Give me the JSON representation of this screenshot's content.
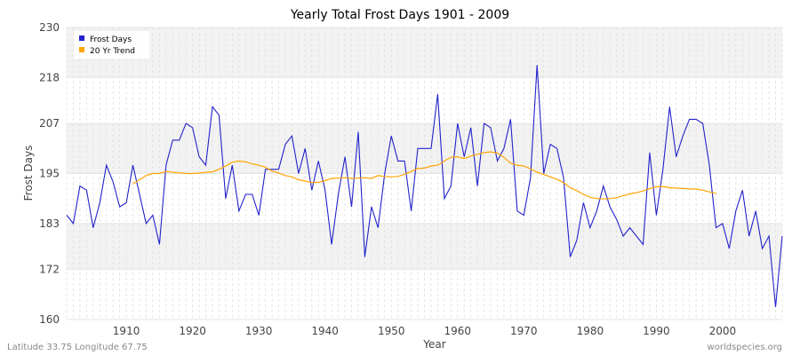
{
  "chart_data": {
    "type": "line",
    "title": "Yearly Total Frost Days 1901 - 2009",
    "xlabel": "Year",
    "ylabel": "Frost Days",
    "xlim": [
      1901,
      2009
    ],
    "ylim": [
      160,
      230
    ],
    "x_ticks": [
      1910,
      1920,
      1930,
      1940,
      1950,
      1960,
      1970,
      1980,
      1990,
      2000
    ],
    "y_ticks": [
      160,
      172,
      183,
      195,
      207,
      218,
      230
    ],
    "grid": true,
    "legend_position": "top-left",
    "colors": {
      "frost_days": "#2222cc",
      "trend": "#ffa500"
    },
    "series": [
      {
        "name": "Frost Days",
        "x": [
          1901,
          1902,
          1903,
          1904,
          1905,
          1906,
          1907,
          1908,
          1909,
          1910,
          1911,
          1912,
          1913,
          1914,
          1915,
          1916,
          1917,
          1918,
          1919,
          1920,
          1921,
          1922,
          1923,
          1924,
          1925,
          1926,
          1927,
          1928,
          1929,
          1930,
          1931,
          1932,
          1933,
          1934,
          1935,
          1936,
          1937,
          1938,
          1939,
          1940,
          1941,
          1942,
          1943,
          1944,
          1945,
          1946,
          1947,
          1948,
          1949,
          1950,
          1951,
          1952,
          1953,
          1954,
          1955,
          1956,
          1957,
          1958,
          1959,
          1960,
          1961,
          1962,
          1963,
          1964,
          1965,
          1966,
          1967,
          1968,
          1969,
          1970,
          1971,
          1972,
          1973,
          1974,
          1975,
          1976,
          1977,
          1978,
          1979,
          1980,
          1981,
          1982,
          1983,
          1984,
          1985,
          1986,
          1987,
          1988,
          1989,
          1990,
          1991,
          1992,
          1993,
          1994,
          1995,
          1996,
          1997,
          1998,
          1999,
          2000,
          2001,
          2002,
          2003,
          2004,
          2005,
          2006,
          2007,
          2008,
          2009
        ],
        "values": [
          185,
          183,
          192,
          191,
          182,
          188,
          197,
          193,
          187,
          188,
          197,
          190,
          183,
          185,
          178,
          197,
          203,
          203,
          207,
          206,
          199,
          197,
          211,
          209,
          189,
          197,
          186,
          190,
          190,
          185,
          196,
          196,
          196,
          202,
          204,
          195,
          201,
          191,
          198,
          191,
          178,
          190,
          199,
          187,
          205,
          175,
          187,
          182,
          195,
          204,
          198,
          198,
          186,
          201,
          201,
          201,
          214,
          189,
          192,
          207,
          199,
          206,
          192,
          207,
          206,
          198,
          201,
          208,
          186,
          185,
          194,
          221,
          195,
          202,
          201,
          194,
          175,
          179,
          188,
          182,
          186,
          192,
          187,
          184,
          180,
          182,
          180,
          178,
          200,
          185,
          196,
          211,
          199,
          204,
          208,
          208,
          207,
          197,
          182,
          183,
          177,
          186,
          191,
          180,
          186,
          177,
          180,
          163,
          180
        ]
      },
      {
        "name": "20 Yr Trend",
        "x": [
          1911,
          1912,
          1913,
          1914,
          1915,
          1916,
          1917,
          1918,
          1919,
          1920,
          1921,
          1922,
          1923,
          1924,
          1925,
          1926,
          1927,
          1928,
          1929,
          1930,
          1931,
          1932,
          1933,
          1934,
          1935,
          1936,
          1937,
          1938,
          1939,
          1940,
          1941,
          1942,
          1943,
          1944,
          1945,
          1946,
          1947,
          1948,
          1949,
          1950,
          1951,
          1952,
          1953,
          1954,
          1955,
          1956,
          1957,
          1958,
          1959,
          1960,
          1961,
          1962,
          1963,
          1964,
          1965,
          1966,
          1967,
          1968,
          1969,
          1970,
          1971,
          1972,
          1973,
          1974,
          1975,
          1976,
          1977,
          1978,
          1979,
          1980,
          1981,
          1982,
          1983,
          1984,
          1985,
          1986,
          1987,
          1988,
          1989,
          1990,
          1991,
          1992,
          1993,
          1994,
          1995,
          1996,
          1997,
          1998,
          1999
        ],
        "values": [
          192.5,
          193.5,
          194.5,
          195,
          195,
          195.5,
          195.3,
          195.2,
          195,
          195,
          195.1,
          195.3,
          195.4,
          196,
          196.8,
          197.7,
          198,
          197.8,
          197.3,
          197,
          196.5,
          195.6,
          195.1,
          194.5,
          194.2,
          193.5,
          193.2,
          192.8,
          192.9,
          193.3,
          193.8,
          193.9,
          194,
          193.8,
          193.9,
          194,
          193.8,
          194.5,
          194.3,
          194.2,
          194.3,
          194.8,
          195.5,
          196.2,
          196.3,
          196.8,
          197,
          198,
          198.9,
          199,
          198.6,
          199.2,
          199.6,
          200,
          200.2,
          199.9,
          198.9,
          197.5,
          197,
          196.8,
          196.1,
          195.3,
          194.8,
          194.2,
          193.6,
          192.8,
          191.6,
          190.9,
          190,
          189.3,
          189,
          188.9,
          189,
          189.2,
          189.7,
          190.1,
          190.4,
          190.8,
          191.4,
          191.8,
          191.9,
          191.6,
          191.5,
          191.4,
          191.3,
          191.3,
          191,
          190.6,
          190.2
        ]
      }
    ]
  },
  "footer": {
    "location": "Latitude 33.75 Longitude 67.75",
    "credit": "worldspecies.org"
  }
}
